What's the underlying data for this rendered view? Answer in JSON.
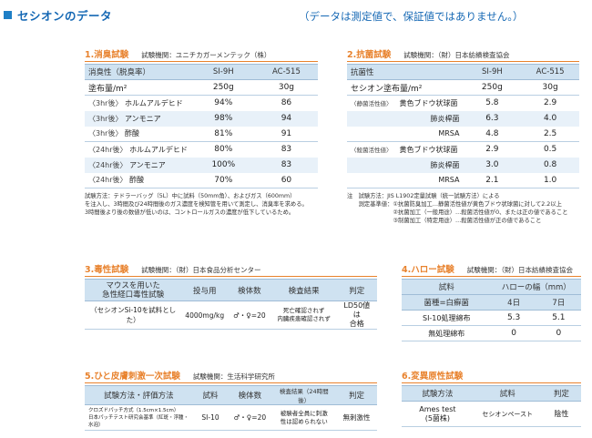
{
  "header": {
    "title": "セシオンのデータ",
    "note": "（データは測定値で、保証値ではありません。）"
  },
  "deodorize": {
    "name": "1.消臭試験",
    "org": "試験機関：ユニチカガーメンテック（株）",
    "columns": [
      "消臭性（脱臭率）",
      "SI-9H",
      "AC-515"
    ],
    "coating": {
      "label": "塗布量/m²",
      "si": "250g",
      "ac": "30g"
    },
    "rows": [
      {
        "time": "〈3hr後〉",
        "gas": "ホルムアルデヒド",
        "si": "94%",
        "ac": "86"
      },
      {
        "time": "〈3hr後〉",
        "gas": "アンモニア",
        "si": "98%",
        "ac": "94"
      },
      {
        "time": "〈3hr後〉",
        "gas": "酢酸",
        "si": "81%",
        "ac": "91"
      },
      {
        "time": "〈24hr後〉",
        "gas": "ホルムアルデヒド",
        "si": "80%",
        "ac": "83"
      },
      {
        "time": "〈24hr後〉",
        "gas": "アンモニア",
        "si": "100%",
        "ac": "83"
      },
      {
        "time": "〈24hr後〉",
        "gas": "酢酸",
        "si": "70%",
        "ac": "60"
      }
    ],
    "note": [
      "試験方法：テドラーバッグ（5L）中に試料（50mm角）、およびガス（600mm）",
      "を注入し、3時間及び24時間後のガス濃度を検知管を用いて測定し、消臭率を求める。",
      "3時間後より後の数値が低いのは、コントロールガスの濃度が低下しているため。"
    ]
  },
  "antibac": {
    "name": "2.抗菌試験",
    "org": "試験機関：（財）日本紡績検査協会",
    "columns": [
      "抗菌性",
      "SI-9H",
      "AC-515"
    ],
    "coating": {
      "label": "セシオン塗布量/m²",
      "si": "250g",
      "ac": "30g"
    },
    "rows": [
      {
        "tag": "〈静菌活性値〉",
        "bac": "黄色ブドウ状球菌",
        "si": "5.8",
        "ac": "2.9"
      },
      {
        "tag": "",
        "bac": "肺炎桿菌",
        "si": "6.3",
        "ac": "4.0"
      },
      {
        "tag": "",
        "bac": "MRSA",
        "si": "4.8",
        "ac": "2.5"
      },
      {
        "tag": "〈殺菌活性値〉",
        "bac": "黄色ブドウ状球菌",
        "si": "2.9",
        "ac": "0.5"
      },
      {
        "tag": "",
        "bac": "肺炎桿菌",
        "si": "3.0",
        "ac": "0.8"
      },
      {
        "tag": "",
        "bac": "MRSA",
        "si": "2.1",
        "ac": "1.0"
      }
    ],
    "note": [
      "注　試験方法：JIS L1902定量試験（統一試験方法）による",
      "　　測定基準値：①抗菌防臭加工…静菌活性値が黄色ブドウ状球菌に対して2.2以上",
      "　　　　　　　　②抗菌加工（一般用途）…殺菌活性値が0、または正の値であること",
      "　　　　　　　　③制菌加工（特定用途）…殺菌活性値が正の値であること"
    ]
  },
  "toxicity": {
    "name": "3.毒性試験",
    "org": "試験機関：（財）日本食品分析センター",
    "columns": [
      "マウスを用いた\n急性経口毒性試験",
      "投与用",
      "検体数",
      "検査結果",
      "判定"
    ],
    "row": {
      "item": "（セシオンSi-10を試料とした）",
      "dose": "4000mg/kg",
      "count": "♂・♀=20",
      "result": "死亡確認されず\n内臓疾患確認されず",
      "judge": "LD50値は\n合格"
    }
  },
  "halo": {
    "name": "4.ハロー試験",
    "org": "試験機関：（財）日本紡績検査協会",
    "col_sample": "試料",
    "col_width": "ハローの幅（mm）",
    "col_strain": "菌種=白癬菌",
    "days": [
      "4日",
      "7日"
    ],
    "rows": [
      {
        "label": "SI-10処理綿布",
        "d4": "5.3",
        "d7": "5.1"
      },
      {
        "label": "無処理綿布",
        "d4": "0",
        "d7": "0"
      }
    ]
  },
  "skin": {
    "name": "5.ひと皮膚刺激一次試験",
    "org": "試験機関：生活科学研究所",
    "columns": [
      "試験方法・評価方法",
      "試料",
      "検体数",
      "検査結果（24時間後）",
      "判定"
    ],
    "row": {
      "method": "クロズドパッチ方式（1.5cm×1.5cm）\n日本パッチテスト研究会基準（紅斑・浮腫・水泡）",
      "sample": "SI-10",
      "count": "♂・♀=20",
      "result": "被験者全員に刺激\n性は認められない",
      "judge": "無刺激性"
    }
  },
  "mutation": {
    "name": "6.変異原性試験",
    "columns": [
      "試験方法",
      "試料",
      "判定"
    ],
    "row": {
      "method": "Ames test\n(5菌株)",
      "sample": "セシオンペースト",
      "judge": "陰性"
    }
  },
  "colors": {
    "accent": "#e8822d",
    "blue": "#1568b4",
    "header_cell": "#cfe2f1",
    "band": "#e8f1f9"
  }
}
